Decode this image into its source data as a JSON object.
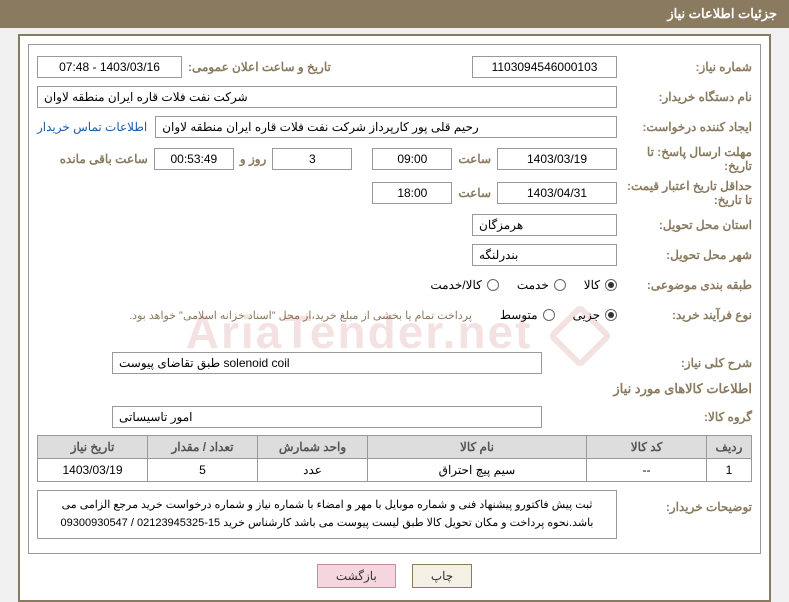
{
  "header": {
    "title": "جزئیات اطلاعات نیاز"
  },
  "fields": {
    "request_number_label": "شماره نیاز:",
    "request_number": "1103094546000103",
    "announce_dt_label": "تاریخ و ساعت اعلان عمومی:",
    "announce_dt": "1403/03/16 - 07:48",
    "buyer_org_label": "نام دستگاه خریدار:",
    "buyer_org": "شرکت نفت فلات قاره ایران منطقه لاوان",
    "creator_label": "ایجاد کننده درخواست:",
    "creator": "رحیم قلی پور کارپرداز شرکت نفت فلات قاره ایران منطقه لاوان",
    "contact_link": "اطلاعات تماس خریدار",
    "reply_deadline_label": "مهلت ارسال پاسخ: تا تاریخ:",
    "reply_date": "1403/03/19",
    "time_word": "ساعت",
    "reply_time": "09:00",
    "days_remaining": "3",
    "days_and": "روز و",
    "time_remaining": "00:53:49",
    "remaining_suffix": "ساعت باقی مانده",
    "price_valid_label": "حداقل تاریخ اعتبار قیمت: تا تاریخ:",
    "price_valid_date": "1403/04/31",
    "price_valid_time": "18:00",
    "delivery_province_label": "استان محل تحویل:",
    "delivery_province": "هرمزگان",
    "delivery_city_label": "شهر محل تحویل:",
    "delivery_city": "بندرلنگه",
    "category_label": "طبقه بندی موضوعی:",
    "cat_kala": "کالا",
    "cat_khadamat": "خدمت",
    "cat_kala_khadamat": "کالا/خدمت",
    "process_label": "نوع فرآیند خرید:",
    "proc_jozi": "جزیی",
    "proc_motavaset": "متوسط",
    "process_note": "پرداخت تمام یا بخشی از مبلغ خرید،از محل \"اسناد خزانه اسلامی\" خواهد بود.",
    "general_desc_label": "شرح کلی نیاز:",
    "general_desc": "solenoid coil طبق تقاضای پیوست",
    "items_section_title": "اطلاعات کالاهای مورد نیاز",
    "group_label": "گروه کالا:",
    "group_value": "امور تاسیساتی",
    "buyer_notes_label": "توضیحات خریدار:",
    "buyer_notes": "ثبت پیش فاکتورو پیشنهاد فنی و شماره موبایل با مهر و امضاء با شماره نیاز و شماره درخواست خرید مرجع الزامی می باشد.نحوه پرداخت و مکان تحویل کالا طبق لیست پیوست می باشد کارشناس خرید 15-02123945325 / 09300930547"
  },
  "table": {
    "headers": {
      "row": "ردیف",
      "code": "کد کالا",
      "name": "نام کالا",
      "unit": "واحد شمارش",
      "qty": "تعداد / مقدار",
      "date": "تاریخ نیاز"
    },
    "rows": [
      {
        "row": "1",
        "code": "--",
        "name": "سیم پیچ احتراق",
        "unit": "عدد",
        "qty": "5",
        "date": "1403/03/19"
      }
    ]
  },
  "buttons": {
    "print": "چاپ",
    "back": "بازگشت"
  },
  "watermark": {
    "text": "AriaTender.net"
  },
  "style": {
    "accent": "#8a7a5f",
    "border": "#999999",
    "th_bg": "#dddddd",
    "link": "#1a5dab"
  }
}
